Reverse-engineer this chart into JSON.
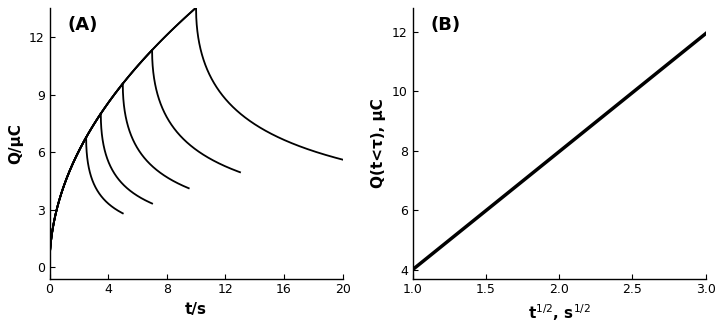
{
  "panel_A": {
    "label": "(A)",
    "xlabel": "t/s",
    "ylabel": "Q/μC",
    "xlim": [
      0,
      20
    ],
    "ylim": [
      -0.6,
      13.5
    ],
    "yticks": [
      0,
      3,
      6,
      9,
      12
    ],
    "xticks": [
      0,
      4,
      8,
      12,
      16,
      20
    ],
    "curves": [
      {
        "tau": 2.5,
        "scale": 4.28,
        "t_end": 5.0
      },
      {
        "tau": 3.5,
        "scale": 4.28,
        "t_end": 7.0
      },
      {
        "tau": 5.0,
        "scale": 4.28,
        "t_end": 9.5
      },
      {
        "tau": 7.0,
        "scale": 4.28,
        "t_end": 13.0
      },
      {
        "tau": 10.0,
        "scale": 4.28,
        "t_end": 20.0
      },
      {
        "tau": 20.0,
        "scale": 4.28,
        "t_end": 20.0
      }
    ]
  },
  "panel_B": {
    "label": "(B)",
    "xlabel": "t$^{1/2}$, s$^{1/2}$",
    "ylabel": "Q(t<τ), μC",
    "xlim": [
      1.0,
      3.0
    ],
    "ylim": [
      3.7,
      12.8
    ],
    "yticks": [
      4,
      6,
      8,
      10,
      12
    ],
    "xticks": [
      1.0,
      1.5,
      2.0,
      2.5,
      3.0
    ],
    "line_x": [
      1.0,
      3.0
    ],
    "line_y": [
      4.0,
      11.95
    ],
    "line_width": 2.5
  },
  "line_color": "#000000",
  "background_color": "#ffffff",
  "line_width": 1.3
}
